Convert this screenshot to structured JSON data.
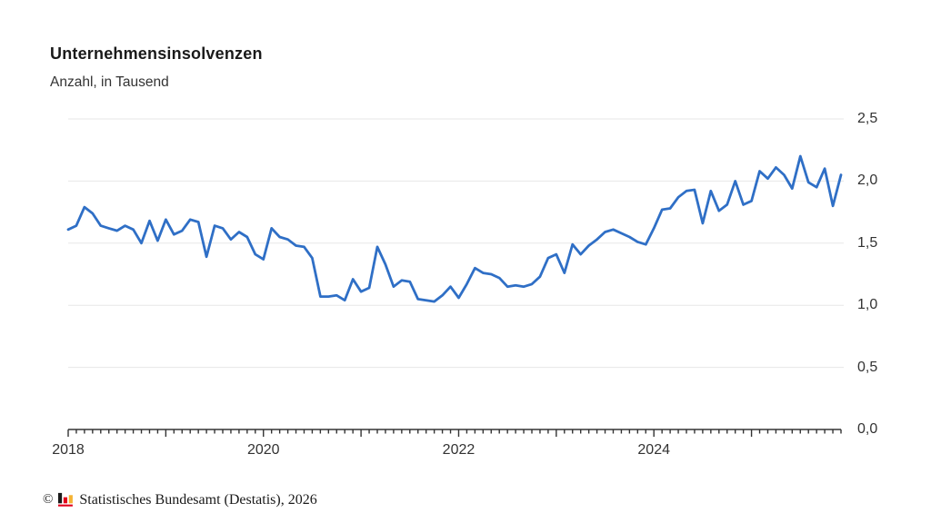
{
  "header": {
    "title": "Unternehmensinsolvenzen",
    "subtitle": "Anzahl, in Tausend"
  },
  "footer": {
    "copyright_symbol": "©",
    "source_text": "Statistisches Bundesamt (Destatis), 2026",
    "logo_icon": "destatis-bar-chart-logo",
    "logo_colors": {
      "bar1": "#1a1a1a",
      "bar2": "#e2001a",
      "bar3": "#f5b333",
      "baseline": "#e2001a"
    }
  },
  "colors": {
    "line": "#2f6fc6",
    "grid": "#e7e7e7",
    "axis": "#333333",
    "title_text": "#1a1a1a",
    "body_text": "#333333"
  },
  "chart_data": {
    "type": "line",
    "title": "Unternehmensinsolvenzen",
    "subtitle": "Anzahl, in Tausend",
    "ylabel": "Anzahl, in Tausend",
    "xlabel": "",
    "unit": "Tausend",
    "x_frequency": "monthly",
    "legend": "none",
    "grid": "horizontal",
    "ylim": [
      0,
      2.5
    ],
    "x": [
      "2018-01",
      "2018-02",
      "2018-03",
      "2018-04",
      "2018-05",
      "2018-06",
      "2018-07",
      "2018-08",
      "2018-09",
      "2018-10",
      "2018-11",
      "2018-12",
      "2019-01",
      "2019-02",
      "2019-03",
      "2019-04",
      "2019-05",
      "2019-06",
      "2019-07",
      "2019-08",
      "2019-09",
      "2019-10",
      "2019-11",
      "2019-12",
      "2020-01",
      "2020-02",
      "2020-03",
      "2020-04",
      "2020-05",
      "2020-06",
      "2020-07",
      "2020-08",
      "2020-09",
      "2020-10",
      "2020-11",
      "2020-12",
      "2021-01",
      "2021-02",
      "2021-03",
      "2021-04",
      "2021-05",
      "2021-06",
      "2021-07",
      "2021-08",
      "2021-09",
      "2021-10",
      "2021-11",
      "2021-12",
      "2022-01",
      "2022-02",
      "2022-03",
      "2022-04",
      "2022-05",
      "2022-06",
      "2022-07",
      "2022-08",
      "2022-09",
      "2022-10",
      "2022-11",
      "2022-12",
      "2023-01",
      "2023-02",
      "2023-03",
      "2023-04",
      "2023-05",
      "2023-06",
      "2023-07",
      "2023-08",
      "2023-09",
      "2023-10",
      "2023-11",
      "2023-12",
      "2024-01",
      "2024-02",
      "2024-03",
      "2024-04",
      "2024-05",
      "2024-06",
      "2024-07",
      "2024-08",
      "2024-09",
      "2024-10",
      "2024-11",
      "2024-12",
      "2025-01",
      "2025-02",
      "2025-03",
      "2025-04",
      "2025-05",
      "2025-06",
      "2025-07",
      "2025-08",
      "2025-09",
      "2025-10",
      "2025-11",
      "2025-12"
    ],
    "values": [
      1.61,
      1.64,
      1.79,
      1.74,
      1.64,
      1.62,
      1.6,
      1.64,
      1.61,
      1.5,
      1.68,
      1.52,
      1.69,
      1.57,
      1.6,
      1.69,
      1.67,
      1.39,
      1.64,
      1.62,
      1.53,
      1.59,
      1.55,
      1.41,
      1.37,
      1.62,
      1.55,
      1.53,
      1.48,
      1.47,
      1.38,
      1.07,
      1.07,
      1.08,
      1.04,
      1.21,
      1.11,
      1.14,
      1.47,
      1.33,
      1.15,
      1.2,
      1.19,
      1.05,
      1.04,
      1.03,
      1.08,
      1.15,
      1.06,
      1.17,
      1.3,
      1.26,
      1.25,
      1.22,
      1.15,
      1.16,
      1.15,
      1.17,
      1.23,
      1.38,
      1.41,
      1.26,
      1.49,
      1.41,
      1.48,
      1.53,
      1.59,
      1.61,
      1.58,
      1.55,
      1.51,
      1.49,
      1.62,
      1.77,
      1.78,
      1.87,
      1.92,
      1.93,
      1.66,
      1.92,
      1.76,
      1.81,
      2.0,
      1.81,
      1.84,
      2.08,
      2.02,
      2.11,
      2.05,
      1.94,
      2.2,
      1.99,
      1.95,
      2.1,
      1.8,
      2.05
    ],
    "y_ticks": [
      {
        "label": "0,0",
        "value": 0.0
      },
      {
        "label": "0,5",
        "value": 0.5
      },
      {
        "label": "1,0",
        "value": 1.0
      },
      {
        "label": "1,5",
        "value": 1.5
      },
      {
        "label": "2,0",
        "value": 2.0
      },
      {
        "label": "2,5",
        "value": 2.5
      }
    ],
    "x_year_ticks": [
      {
        "label": "2018",
        "month_index": 0
      },
      {
        "label": "2020",
        "month_index": 24
      },
      {
        "label": "2022",
        "month_index": 48
      },
      {
        "label": "2024",
        "month_index": 72
      }
    ]
  }
}
